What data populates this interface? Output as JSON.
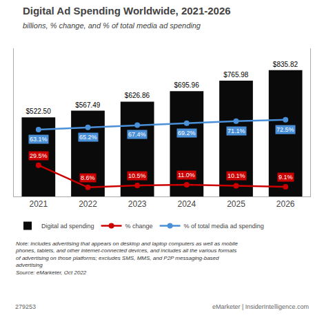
{
  "chart_data": {
    "type": "bar",
    "title": "Digital Ad Spending Worldwide, 2021-2026",
    "subtitle": "billions, % change, and % of total media ad spending",
    "categories": [
      "2021",
      "2022",
      "2023",
      "2024",
      "2025",
      "2026"
    ],
    "series": [
      {
        "name": "Digital ad spending",
        "type": "bar",
        "color": "#0a0a0a",
        "values": [
          522.5,
          567.49,
          626.86,
          695.96,
          765.98,
          835.82
        ],
        "value_labels": [
          "$522.50",
          "$567.49",
          "$626.86",
          "$695.96",
          "$765.98",
          "$835.82"
        ]
      },
      {
        "name": "% change",
        "type": "line",
        "axis": "y2",
        "color": "#cc0000",
        "marker": "circle",
        "line_style": "solid",
        "values": [
          29.5,
          8.6,
          10.5,
          11.0,
          10.1,
          9.1
        ],
        "value_labels": [
          "29.5%",
          "8.6%",
          "10.5%",
          "11.0%",
          "10.1%",
          "9.1%"
        ]
      },
      {
        "name": "% of total media ad spending",
        "type": "line",
        "axis": "y2",
        "color": "#4a90d9",
        "marker": "circle",
        "line_style": "solid",
        "values": [
          63.1,
          65.2,
          67.4,
          69.2,
          71.1,
          72.5
        ],
        "value_labels": [
          "63.1%",
          "65.2%",
          "67.4%",
          "69.2%",
          "71.1%",
          "72.5%"
        ]
      }
    ],
    "ylim": [
      0,
      980
    ],
    "yticks": [],
    "y2lim": [
      0,
      140
    ],
    "y2ticks": [],
    "tick_labels": "x",
    "grid": false,
    "legend": "bottom",
    "data_labels": true,
    "annotations": [
      "Note: includes advertising that appears on desktop and laptop computers as well as mobile\nphones, tablets, and other internet-connected devices, and includes all the various formats\nof advertising on those platforms; excludes SMS, MMS, and P2P messaging-based\nadvertising\nSource: eMarketer, Oct 2022",
      "279253",
      "eMarketer",
      "|",
      "InsiderIntelligence.com"
    ]
  }
}
